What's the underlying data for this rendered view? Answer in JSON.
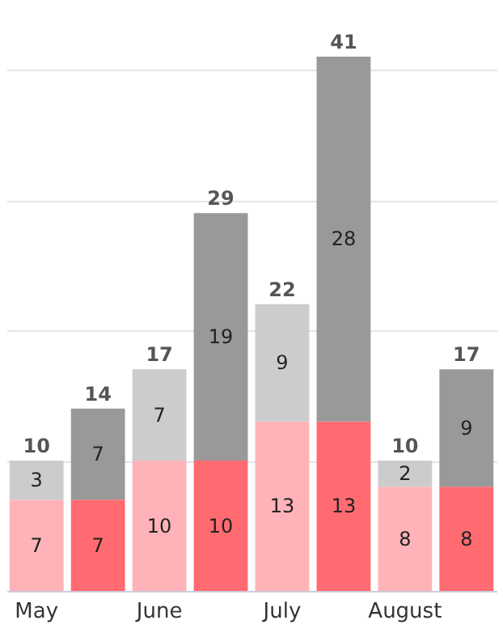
{
  "chart_data": {
    "type": "bar",
    "stacked": true,
    "categories": [
      "May",
      null,
      "June",
      null,
      "July",
      null,
      "August",
      null
    ],
    "series": [
      {
        "colors": [
          "#ffb3b8",
          "#ff6b70",
          "#ffb3b8",
          "#ff6b70",
          "#ffb3b8",
          "#ff6b70",
          "#ffb3b8",
          "#ff6b70"
        ],
        "values": [
          7,
          7,
          10,
          10,
          13,
          13,
          8,
          8
        ]
      },
      {
        "colors": [
          "#cccccc",
          "#999999",
          "#cccccc",
          "#999999",
          "#cccccc",
          "#999999",
          "#cccccc",
          "#999999"
        ],
        "values": [
          3,
          7,
          7,
          19,
          9,
          28,
          2,
          9
        ]
      }
    ],
    "totals": [
      "10",
      "14",
      "17",
      "29",
      "22",
      "41",
      "10",
      "17"
    ],
    "data_labels": true,
    "yticks": [
      0,
      10,
      20,
      30,
      40
    ],
    "grid": "y",
    "tick_labels": "x"
  }
}
